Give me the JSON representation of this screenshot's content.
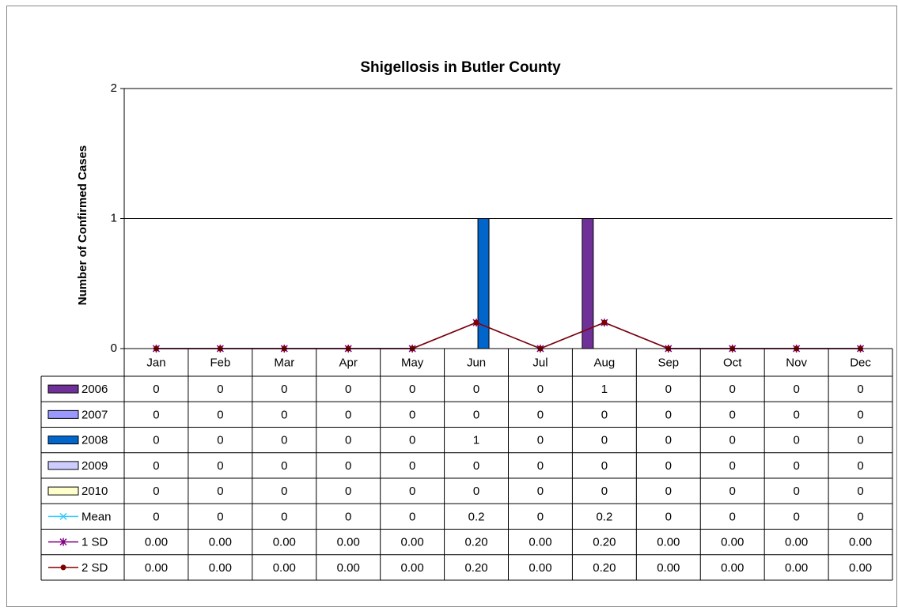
{
  "chart_data": {
    "type": "bar",
    "title": "Shigellosis in Butler County",
    "y_label": "Number of Confirmed Cases",
    "categories": [
      "Jan",
      "Feb",
      "Mar",
      "Apr",
      "May",
      "Jun",
      "Jul",
      "Aug",
      "Sep",
      "Oct",
      "Nov",
      "Dec"
    ],
    "series": [
      {
        "name": "2006",
        "color": "#6f3198",
        "type": "bar",
        "values": [
          0,
          0,
          0,
          0,
          0,
          0,
          0,
          1,
          0,
          0,
          0,
          0
        ]
      },
      {
        "name": "2007",
        "color": "#9999ff",
        "type": "bar",
        "values": [
          0,
          0,
          0,
          0,
          0,
          0,
          0,
          0,
          0,
          0,
          0,
          0
        ]
      },
      {
        "name": "2008",
        "color": "#0066cc",
        "type": "bar",
        "values": [
          0,
          0,
          0,
          0,
          0,
          1,
          0,
          0,
          0,
          0,
          0,
          0
        ]
      },
      {
        "name": "2009",
        "color": "#ccccff",
        "type": "bar",
        "values": [
          0,
          0,
          0,
          0,
          0,
          0,
          0,
          0,
          0,
          0,
          0,
          0
        ]
      },
      {
        "name": "2010",
        "color": "#ffffcc",
        "type": "bar",
        "values": [
          0,
          0,
          0,
          0,
          0,
          0,
          0,
          0,
          0,
          0,
          0,
          0
        ]
      },
      {
        "name": "Mean",
        "color": "#33ccff",
        "type": "line",
        "values": [
          0,
          0,
          0,
          0,
          0,
          0.2,
          0,
          0.2,
          0,
          0,
          0,
          0
        ]
      },
      {
        "name": "1 SD",
        "color": "#800080",
        "type": "line",
        "values": [
          0,
          0,
          0,
          0,
          0,
          0.2,
          0,
          0.2,
          0,
          0,
          0,
          0
        ],
        "value_labels": [
          "0.00",
          "0.00",
          "0.00",
          "0.00",
          "0.00",
          "0.20",
          "0.00",
          "0.20",
          "0.00",
          "0.00",
          "0.00",
          "0.00"
        ]
      },
      {
        "name": "2 SD",
        "color": "#800000",
        "type": "line",
        "values": [
          0,
          0,
          0,
          0,
          0,
          0.2,
          0,
          0.2,
          0,
          0,
          0,
          0
        ],
        "value_labels": [
          "0.00",
          "0.00",
          "0.00",
          "0.00",
          "0.00",
          "0.20",
          "0.00",
          "0.20",
          "0.00",
          "0.00",
          "0.00",
          "0.00"
        ]
      }
    ],
    "ylim": [
      0,
      2
    ],
    "yticks": [
      0,
      1,
      2
    ],
    "grid": true
  }
}
